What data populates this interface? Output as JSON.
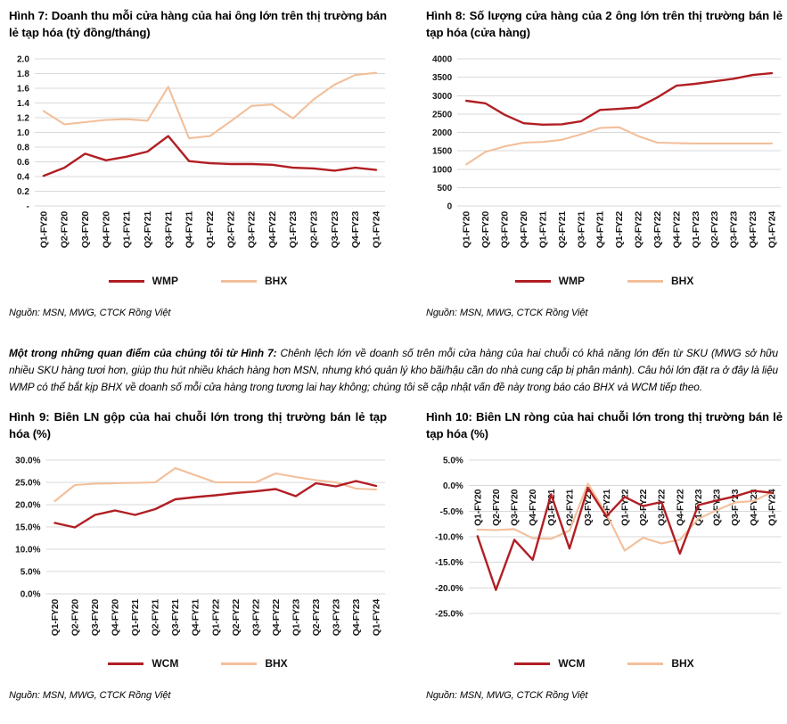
{
  "colors": {
    "wcm_line": "#B11E23",
    "bhx_line": "#F2BF9B",
    "grid": "#D9D9D9",
    "tick_text": "#161616"
  },
  "quarters": [
    "Q1-FY20",
    "Q2-FY20",
    "Q3-FY20",
    "Q4-FY20",
    "Q1-FY21",
    "Q2-FY21",
    "Q3-FY21",
    "Q4-FY21",
    "Q1-FY22",
    "Q2-FY22",
    "Q3-FY22",
    "Q4-FY22",
    "Q1-FY23",
    "Q2-FY23",
    "Q3-FY23",
    "Q4-FY23",
    "Q1-FY24"
  ],
  "figures": [
    {
      "id": "hinh-7",
      "source": "Nguồn: MSN, MWG, CTCK Rồng Việt"
    },
    {
      "id": "hinh-8",
      "source": "Nguồn: MSN, MWG, CTCK Rồng Việt"
    },
    {
      "id": "hinh-9",
      "source": "Nguồn: MSN, MWG, CTCK Rồng Việt"
    },
    {
      "id": "hinh-10",
      "source": "Nguồn: MSN, MWG, CTCK Rồng Việt"
    }
  ],
  "commentary": {
    "lead": "Một trong những quan điểm của chúng tôi từ Hình 7: ",
    "body": "Chênh lệch lớn về doanh số trên mỗi cửa hàng của hai chuỗi có khả năng lớn đến từ SKU (MWG sở hữu nhiều SKU hàng tươi hơn, giúp thu hút nhiều khách hàng hơn MSN, nhưng khó quản lý kho bãi/hậu cần do nhà cung cấp bị phân mảnh). Câu hỏi lớn đặt ra ở đây là liệu WMP có thể bắt kịp BHX về doanh số mỗi cửa hàng trong tương lai hay không; chúng tôi sẽ cập nhật vấn đề này trong báo cáo BHX và WCM tiếp theo."
  },
  "chart_data": [
    {
      "type": "line",
      "title": "Hình 7: Doanh thu mỗi cửa hàng của hai ông lớn trên thị trường bán lẻ tạp hóa (tỷ đồng/tháng)",
      "categories": [
        "Q1-FY20",
        "Q2-FY20",
        "Q3-FY20",
        "Q4-FY20",
        "Q1-FY21",
        "Q2-FY21",
        "Q3-FY21",
        "Q4-FY21",
        "Q1-FY22",
        "Q2-FY22",
        "Q3-FY22",
        "Q4-FY22",
        "Q1-FY23",
        "Q2-FY23",
        "Q3-FY23",
        "Q4-FY23",
        "Q1-FY24"
      ],
      "ylim": [
        0,
        2
      ],
      "y_tick_values": [
        2.0,
        1.8,
        1.6,
        1.4,
        1.2,
        1.0,
        0.8,
        0.6,
        0.4,
        0.2,
        0
      ],
      "y_tick_labels": [
        "2.0",
        "1.8",
        "1.6",
        "1.4",
        "1.2",
        "1.0",
        "0.8",
        "0.6",
        "0.4",
        "0.2",
        "-"
      ],
      "x_labels_position": "below",
      "legend_position": "bottom",
      "grid": true,
      "series": [
        {
          "name": "WMP",
          "color": "#B11E23",
          "values": [
            0.41,
            0.52,
            0.71,
            0.62,
            0.67,
            0.74,
            0.95,
            0.61,
            0.58,
            0.57,
            0.57,
            0.56,
            0.52,
            0.51,
            0.48,
            0.52,
            0.49
          ]
        },
        {
          "name": "BHX",
          "color": "#F2BF9B",
          "values": [
            1.29,
            1.11,
            1.14,
            1.17,
            1.18,
            1.16,
            1.62,
            0.92,
            0.95,
            1.15,
            1.36,
            1.38,
            1.19,
            1.45,
            1.65,
            1.78,
            1.81
          ]
        }
      ]
    },
    {
      "type": "line",
      "title": "Hình 8: Số lượng cửa hàng của 2 ông lớn trên thị trường bán lẻ tạp hóa (cửa hàng)",
      "categories": [
        "Q1-FY20",
        "Q2-FY20",
        "Q3-FY20",
        "Q4-FY20",
        "Q1-FY21",
        "Q2-FY21",
        "Q3-FY21",
        "Q4-FY21",
        "Q1-FY22",
        "Q2-FY22",
        "Q3-FY22",
        "Q4-FY22",
        "Q1-FY23",
        "Q2-FY23",
        "Q3-FY23",
        "Q4-FY23",
        "Q1-FY24"
      ],
      "ylim": [
        0,
        4000
      ],
      "y_tick_values": [
        4000,
        3500,
        3000,
        2500,
        2000,
        1500,
        1000,
        500,
        0
      ],
      "y_tick_labels": [
        "4000",
        "3500",
        "3000",
        "2500",
        "2000",
        "1500",
        "1000",
        "500",
        "0"
      ],
      "x_labels_position": "below",
      "legend_position": "bottom",
      "grid": true,
      "series": [
        {
          "name": "WMP",
          "color": "#B11E23",
          "values": [
            2860,
            2790,
            2480,
            2250,
            2210,
            2220,
            2300,
            2610,
            2640,
            2680,
            2950,
            3270,
            3320,
            3390,
            3460,
            3560,
            3610
          ]
        },
        {
          "name": "BHX",
          "color": "#F2BF9B",
          "values": [
            1130,
            1470,
            1620,
            1720,
            1740,
            1800,
            1950,
            2120,
            2140,
            1900,
            1720,
            1710,
            1700,
            1700,
            1700,
            1700,
            1700
          ]
        }
      ]
    },
    {
      "type": "line",
      "title": "Hình 9: Biên LN gộp của hai chuỗi lớn trong thị trường bán lẻ tạp hóa (%)",
      "categories": [
        "Q1-FY20",
        "Q2-FY20",
        "Q3-FY20",
        "Q4-FY20",
        "Q1-FY21",
        "Q2-FY21",
        "Q3-FY21",
        "Q4-FY21",
        "Q1-FY22",
        "Q2-FY22",
        "Q3-FY22",
        "Q4-FY22",
        "Q1-FY23",
        "Q2-FY23",
        "Q3-FY23",
        "Q4-FY23",
        "Q1-FY24"
      ],
      "ylim": [
        0,
        30
      ],
      "y_tick_values": [
        30,
        25,
        20,
        15,
        10,
        5,
        0
      ],
      "y_tick_labels": [
        "30.0%",
        "25.0%",
        "20.0%",
        "15.0%",
        "10.0%",
        "5.0%",
        "0.0%"
      ],
      "x_labels_position": "below",
      "legend_position": "bottom",
      "grid": true,
      "series": [
        {
          "name": "WCM",
          "color": "#B11E23",
          "values": [
            15.9,
            14.9,
            17.7,
            18.7,
            17.7,
            19.0,
            21.2,
            21.7,
            22.1,
            22.6,
            23.0,
            23.5,
            21.9,
            24.8,
            24.1,
            25.3,
            24.2
          ]
        },
        {
          "name": "BHX",
          "color": "#F2BF9B",
          "values": [
            20.8,
            24.4,
            24.7,
            24.8,
            24.9,
            25.0,
            28.2,
            26.6,
            25.0,
            25.0,
            25.0,
            27.0,
            26.2,
            25.5,
            25.0,
            23.6,
            23.4
          ]
        }
      ]
    },
    {
      "type": "line",
      "title": "Hình 10: Biên LN ròng của hai chuỗi lớn trong thị trường bán lẻ tạp hóa (%)",
      "categories": [
        "Q1-FY20",
        "Q2-FY20",
        "Q3-FY20",
        "Q4-FY20",
        "Q1-FY21",
        "Q2-FY21",
        "Q3-FY21",
        "Q4-FY21",
        "Q1-FY22",
        "Q2-FY22",
        "Q3-FY22",
        "Q4-FY22",
        "Q1-FY23",
        "Q2-FY23",
        "Q3-FY23",
        "Q4-FY23",
        "Q1-FY24"
      ],
      "ylim": [
        -25,
        5
      ],
      "y_tick_values": [
        5,
        0,
        -5,
        -10,
        -15,
        -20,
        -25
      ],
      "y_tick_labels": [
        "5.0%",
        "0.0%",
        "-5.0%",
        "-10.0%",
        "-15.0%",
        "-20.0%",
        "-25.0%"
      ],
      "x_labels_position": "inside",
      "legend_position": "bottom",
      "grid": true,
      "series": [
        {
          "name": "WCM",
          "color": "#B11E23",
          "values": [
            -9.9,
            -20.4,
            -10.6,
            -14.5,
            -1.7,
            -12.3,
            -0.4,
            -6.0,
            -2.2,
            -4.0,
            -3.2,
            -13.3,
            -3.8,
            -2.9,
            -2.1,
            -1.0,
            -1.4
          ]
        },
        {
          "name": "BHX",
          "color": "#F2BF9B",
          "values": [
            -8.6,
            -8.7,
            -8.5,
            -10.3,
            -10.4,
            -8.8,
            0.4,
            -5.5,
            -12.7,
            -10.2,
            -11.3,
            -10.6,
            -6.5,
            -4.8,
            -3.3,
            -3.0,
            -1.3
          ]
        }
      ]
    }
  ]
}
